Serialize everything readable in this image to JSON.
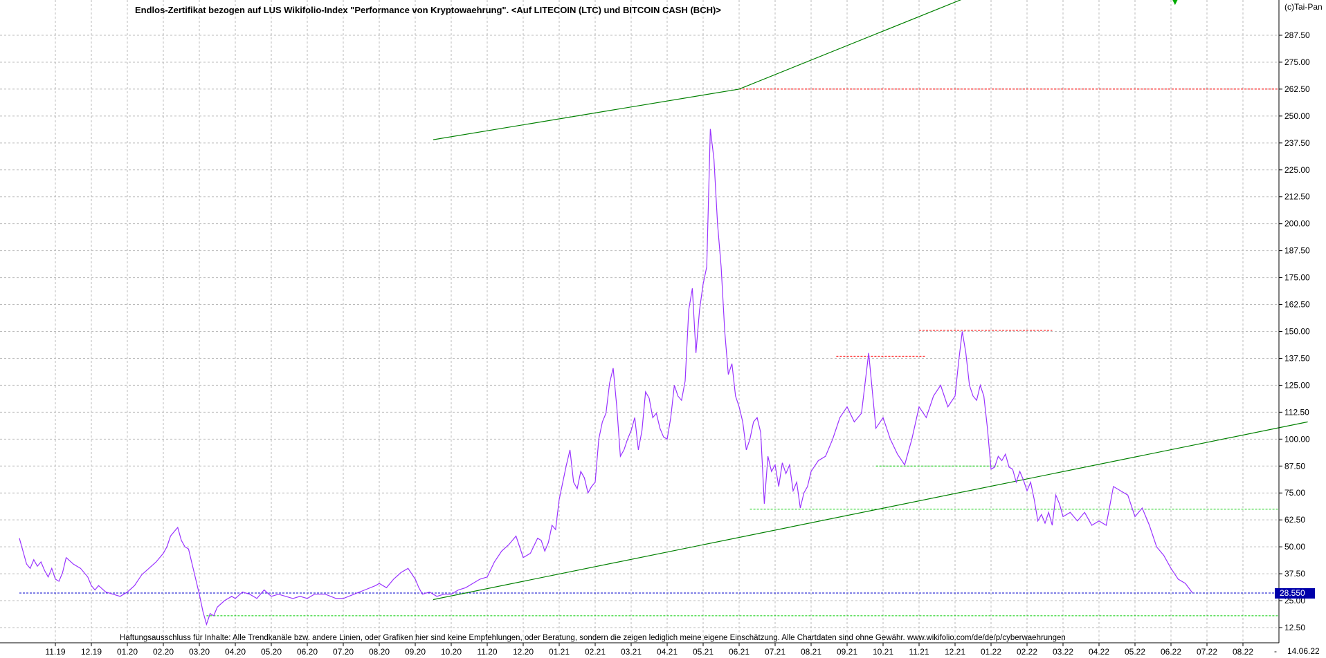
{
  "chart_data": {
    "type": "line",
    "title": "Endlos-Zertifikat bezogen auf LUS Wikifolio-Index \"Performance von Kryptowaehrung\". <Auf LITECOIN (LTC) und BITCOIN CASH (BCH)>",
    "copyright": "(c)Tai-Pan",
    "disclaimer": "Haftungsausschluss für Inhalte: Alle Trendkanäle bzw. andere Linien, oder Grafiken hier sind keine Empfehlungen, oder Beratung, sondern die zeigen lediglich meine eigene Einschätzung. Alle Chartdaten sind ohne Gewähr.  www.wikifolio.com/de/de/p/cyberwaehrungen",
    "date_label": "14.06.22",
    "last_value_label": "28.550",
    "last_value": 28.55,
    "ylim": [
      6.25,
      300
    ],
    "y_ticks": [
      12.5,
      25,
      37.5,
      50,
      62.5,
      75,
      87.5,
      100,
      112.5,
      125,
      137.5,
      150,
      162.5,
      175,
      187.5,
      200,
      212.5,
      225,
      237.5,
      250,
      262.5,
      275,
      287.5
    ],
    "y_tick_labels": [
      "12.50",
      "25.00",
      "37.50",
      "50.00",
      "62.50",
      "75.00",
      "87.50",
      "100.00",
      "112.50",
      "125.00",
      "137.50",
      "150.00",
      "162.50",
      "175.00",
      "187.50",
      "200.00",
      "212.50",
      "225.00",
      "237.50",
      "250.00",
      "262.50",
      "275.00",
      "287.50"
    ],
    "x_tick_labels": [
      "11.19",
      "12.19",
      "01.20",
      "02.20",
      "03.20",
      "04.20",
      "05.20",
      "06.20",
      "07.20",
      "08.20",
      "09.20",
      "10.20",
      "11.20",
      "12.20",
      "01.21",
      "02.21",
      "03.21",
      "04.21",
      "05.21",
      "06.21",
      "07.21",
      "08.21",
      "09.21",
      "10.21",
      "11.21",
      "12.21",
      "01.22",
      "02.22",
      "03.22",
      "04.22",
      "05.22",
      "06.22",
      "07.22",
      "08.22"
    ],
    "x_tick_month_index": [
      0,
      1,
      2,
      3,
      4,
      5,
      6,
      7,
      8,
      9,
      10,
      11,
      12,
      13,
      14,
      15,
      16,
      17,
      18,
      19,
      20,
      21,
      22,
      23,
      24,
      25,
      26,
      27,
      28,
      29,
      30,
      31,
      32,
      33
    ],
    "series": [
      {
        "color": "#9933ff",
        "x_month_index": [
          -1.0,
          -0.9,
          -0.8,
          -0.7,
          -0.6,
          -0.5,
          -0.4,
          -0.3,
          -0.2,
          -0.1,
          0.0,
          0.1,
          0.2,
          0.3,
          0.5,
          0.7,
          0.9,
          1.0,
          1.1,
          1.2,
          1.4,
          1.6,
          1.8,
          2.0,
          2.2,
          2.4,
          2.6,
          2.8,
          3.0,
          3.1,
          3.2,
          3.3,
          3.4,
          3.5,
          3.6,
          3.7,
          3.8,
          3.9,
          4.0,
          4.1,
          4.2,
          4.3,
          4.4,
          4.5,
          4.7,
          4.9,
          5.0,
          5.2,
          5.4,
          5.6,
          5.8,
          6.0,
          6.2,
          6.4,
          6.6,
          6.8,
          7.0,
          7.2,
          7.5,
          7.8,
          8.0,
          8.3,
          8.6,
          8.9,
          9.0,
          9.2,
          9.4,
          9.6,
          9.8,
          10.0,
          10.1,
          10.2,
          10.4,
          10.6,
          10.8,
          11.0,
          11.2,
          11.4,
          11.6,
          11.8,
          12.0,
          12.2,
          12.4,
          12.6,
          12.8,
          13.0,
          13.2,
          13.4,
          13.5,
          13.6,
          13.7,
          13.8,
          13.9,
          14.0,
          14.1,
          14.2,
          14.3,
          14.4,
          14.5,
          14.6,
          14.7,
          14.8,
          14.9,
          15.0,
          15.1,
          15.2,
          15.3,
          15.4,
          15.5,
          15.6,
          15.7,
          15.8,
          15.9,
          16.0,
          16.1,
          16.2,
          16.3,
          16.4,
          16.5,
          16.6,
          16.7,
          16.8,
          16.9,
          17.0,
          17.1,
          17.2,
          17.3,
          17.4,
          17.5,
          17.6,
          17.7,
          17.8,
          17.9,
          18.0,
          18.1,
          18.2,
          18.3,
          18.4,
          18.5,
          18.6,
          18.7,
          18.8,
          18.9,
          19.0,
          19.1,
          19.2,
          19.3,
          19.4,
          19.5,
          19.6,
          19.7,
          19.8,
          19.9,
          20.0,
          20.1,
          20.2,
          20.3,
          20.4,
          20.5,
          20.6,
          20.7,
          20.8,
          20.9,
          21.0,
          21.2,
          21.4,
          21.6,
          21.8,
          22.0,
          22.2,
          22.4,
          22.6,
          22.8,
          23.0,
          23.2,
          23.4,
          23.6,
          23.8,
          24.0,
          24.2,
          24.4,
          24.6,
          24.8,
          25.0,
          25.1,
          25.2,
          25.3,
          25.4,
          25.5,
          25.6,
          25.7,
          25.8,
          25.9,
          26.0,
          26.1,
          26.2,
          26.3,
          26.4,
          26.5,
          26.6,
          26.7,
          26.8,
          26.9,
          27.0,
          27.1,
          27.2,
          27.3,
          27.4,
          27.5,
          27.6,
          27.7,
          27.8,
          27.9,
          28.0,
          28.2,
          28.4,
          28.6,
          28.8,
          29.0,
          29.2,
          29.4,
          29.6,
          29.8,
          30.0,
          30.2,
          30.4,
          30.6,
          30.8,
          31.0,
          31.2,
          31.4,
          31.6
        ],
        "values": [
          54,
          48,
          42,
          40,
          44,
          41,
          43,
          39,
          36,
          40,
          35,
          34,
          38,
          45,
          42,
          40,
          36,
          32,
          30,
          32,
          29,
          28,
          27,
          29,
          32,
          37,
          40,
          43,
          47,
          50,
          55,
          57,
          59,
          53,
          50,
          49,
          42,
          35,
          28,
          20,
          14,
          19,
          18,
          22,
          25,
          27,
          26,
          29,
          28,
          26,
          30,
          27,
          28,
          27,
          26,
          27,
          26,
          28,
          28,
          26,
          26,
          28,
          30,
          32,
          33,
          31,
          35,
          38,
          40,
          35,
          31,
          28,
          29,
          27,
          28,
          28,
          30,
          31,
          33,
          35,
          36,
          43,
          48,
          51,
          55,
          45,
          47,
          54,
          53,
          48,
          52,
          60,
          58,
          72,
          80,
          88,
          95,
          80,
          77,
          85,
          82,
          75,
          78,
          80,
          100,
          108,
          112,
          126,
          133,
          115,
          92,
          95,
          100,
          104,
          110,
          95,
          104,
          122,
          119,
          110,
          112,
          105,
          101,
          100,
          110,
          125,
          120,
          118,
          127,
          160,
          170,
          140,
          160,
          172,
          180,
          244,
          230,
          200,
          180,
          150,
          130,
          135,
          120,
          115,
          108,
          95,
          100,
          108,
          110,
          103,
          70,
          92,
          85,
          88,
          78,
          89,
          84,
          88,
          76,
          80,
          68,
          75,
          78,
          85,
          90,
          92,
          100,
          110,
          115,
          108,
          112,
          140,
          105,
          110,
          100,
          93,
          88,
          100,
          115,
          110,
          120,
          125,
          115,
          120,
          136,
          150,
          140,
          125,
          120,
          118,
          125,
          120,
          105,
          86,
          87,
          92,
          90,
          93,
          87,
          86,
          80,
          85,
          81,
          76,
          80,
          72,
          62,
          65,
          61,
          66,
          60,
          74,
          70,
          64,
          66,
          62,
          66,
          60,
          62,
          60,
          78,
          76,
          74,
          64,
          68,
          60,
          50,
          46,
          40,
          35,
          33,
          28.55
        ]
      }
    ],
    "lines": {
      "channel": [
        {
          "color": "#008000",
          "x1_month_index": 10.5,
          "y1": 239,
          "x2_month_index": 19.0,
          "y2": 262.5
        },
        {
          "color": "#008000",
          "x1_month_index": 19.0,
          "y1": 262.5,
          "x2_month_index": 26.8,
          "y2": 315
        },
        {
          "color": "#008000",
          "x1_month_index": 10.5,
          "y1": 25.5,
          "x2_month_index": 34.8,
          "y2": 108
        }
      ],
      "horizontal": [
        {
          "color": "#ff0000",
          "y": 262.5,
          "x1_month_index": 19.0,
          "x2_month_index": 34.8
        },
        {
          "color": "#ff0000",
          "y": 150.5,
          "x1_month_index": 24.0,
          "x2_month_index": 27.7
        },
        {
          "color": "#ff0000",
          "y": 138.5,
          "x1_month_index": 21.7,
          "x2_month_index": 24.2
        },
        {
          "color": "#00cc00",
          "y": 87.5,
          "x1_month_index": 22.8,
          "x2_month_index": 26.2
        },
        {
          "color": "#00cc00",
          "y": 67.5,
          "x1_month_index": 19.3,
          "x2_month_index": 34.8
        },
        {
          "color": "#00cc00",
          "y": 18,
          "x1_month_index": 4.2,
          "x2_month_index": 34.8
        },
        {
          "color": "#0000cc",
          "y": 28.55,
          "x1_month_index": -1.0,
          "x2_month_index": 35.7
        }
      ]
    },
    "grid": true,
    "axis_position": "right"
  }
}
